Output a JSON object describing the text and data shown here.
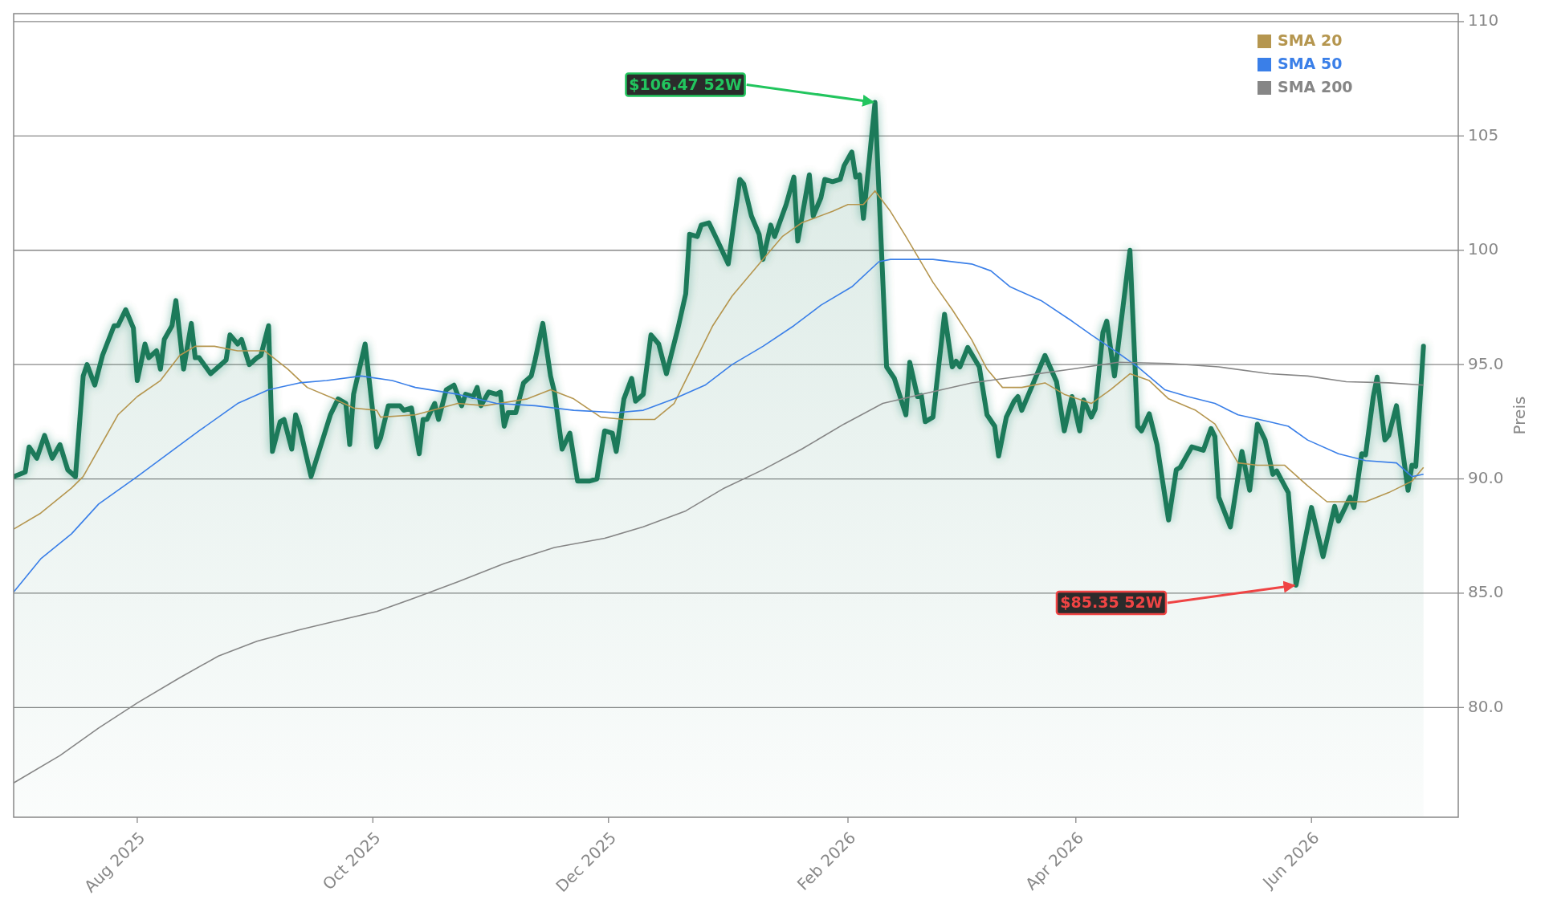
{
  "chart_data": {
    "type": "line",
    "ylabel": "Preis",
    "xlim": [
      "2025-06-30",
      "2026-07-09"
    ],
    "ylim": [
      75.2,
      110.35
    ],
    "xticks": [
      {
        "value": "2025-08-01",
        "label": "Aug 2025"
      },
      {
        "value": "2025-10-01",
        "label": "Oct 2025"
      },
      {
        "value": "2025-12-01",
        "label": "Dec 2025"
      },
      {
        "value": "2026-02-01",
        "label": "Feb 2026"
      },
      {
        "value": "2026-04-01",
        "label": "Apr 2026"
      },
      {
        "value": "2026-06-01",
        "label": "Jun 2026"
      }
    ],
    "yticks": [
      {
        "value": 80,
        "label": "80.0"
      },
      {
        "value": 85,
        "label": "85.0"
      },
      {
        "value": 90,
        "label": "90.0"
      },
      {
        "value": 95,
        "label": "95.0"
      },
      100,
      105,
      110
    ],
    "grid": "y",
    "legend": "top right",
    "annotations": [
      {
        "text": "$106.47 52W",
        "x": "2026-02-08",
        "y": 106.47
      },
      {
        "text": "$85.35 52W",
        "x": "2026-05-28",
        "y": 85.35
      }
    ],
    "series": [
      {
        "type": "area",
        "color": "#1b7a5a",
        "x": [
          "2025-06-30",
          "2025-07-03",
          "2025-07-04",
          "2025-07-06",
          "2025-07-08",
          "2025-07-10",
          "2025-07-12",
          "2025-07-14",
          "2025-07-16",
          "2025-07-18",
          "2025-07-19",
          "2025-07-21",
          "2025-07-23",
          "2025-07-26",
          "2025-07-27",
          "2025-07-29",
          "2025-07-31",
          "2025-08-01",
          "2025-08-03",
          "2025-08-04",
          "2025-08-06",
          "2025-08-07",
          "2025-08-08",
          "2025-08-10",
          "2025-08-11",
          "2025-08-13",
          "2025-08-15",
          "2025-08-16",
          "2025-08-17",
          "2025-08-20",
          "2025-08-22",
          "2025-08-24",
          "2025-08-25",
          "2025-08-27",
          "2025-08-28",
          "2025-08-30",
          "2025-09-01",
          "2025-09-02",
          "2025-09-04",
          "2025-09-05",
          "2025-09-07",
          "2025-09-08",
          "2025-09-10",
          "2025-09-11",
          "2025-09-12",
          "2025-09-15",
          "2025-09-20",
          "2025-09-22",
          "2025-09-24",
          "2025-09-25",
          "2025-09-26",
          "2025-09-29",
          "2025-10-02",
          "2025-10-03",
          "2025-10-05",
          "2025-10-08",
          "2025-10-09",
          "2025-10-11",
          "2025-10-13",
          "2025-10-14",
          "2025-10-15",
          "2025-10-17",
          "2025-10-18",
          "2025-10-20",
          "2025-10-22",
          "2025-10-24",
          "2025-10-25",
          "2025-10-27",
          "2025-10-28",
          "2025-10-29",
          "2025-10-31",
          "2025-11-02",
          "2025-11-03",
          "2025-11-04",
          "2025-11-05",
          "2025-11-07",
          "2025-11-09",
          "2025-11-11",
          "2025-11-12",
          "2025-11-14",
          "2025-11-16",
          "2025-11-17",
          "2025-11-19",
          "2025-11-21",
          "2025-11-23",
          "2025-11-26",
          "2025-11-28",
          "2025-11-30",
          "2025-12-02",
          "2025-12-03",
          "2025-12-05",
          "2025-12-07",
          "2025-12-08",
          "2025-12-10",
          "2025-12-12",
          "2025-12-14",
          "2025-12-16",
          "2025-12-19",
          "2025-12-21",
          "2025-12-22",
          "2025-12-24",
          "2025-12-25",
          "2025-12-27",
          "2025-12-29",
          "2026-01-01",
          "2026-01-04",
          "2026-01-05",
          "2026-01-07",
          "2026-01-09",
          "2026-01-10",
          "2026-01-12",
          "2026-01-13",
          "2026-01-16",
          "2026-01-18",
          "2026-01-19",
          "2026-01-22",
          "2026-01-23",
          "2026-01-25",
          "2026-01-26",
          "2026-01-28",
          "2026-01-30",
          "2026-01-31",
          "2026-02-02",
          "2026-02-03",
          "2026-02-04",
          "2026-02-05",
          "2026-02-08",
          "2026-02-11",
          "2026-02-13",
          "2026-02-16",
          "2026-02-17",
          "2026-02-19",
          "2026-02-20",
          "2026-02-21",
          "2026-02-23",
          "2026-02-26",
          "2026-02-28",
          "2026-03-01",
          "2026-03-02",
          "2026-03-04",
          "2026-03-07",
          "2026-03-09",
          "2026-03-11",
          "2026-03-12",
          "2026-03-14",
          "2026-03-16",
          "2026-03-17",
          "2026-03-18",
          "2026-03-24",
          "2026-03-27",
          "2026-03-29",
          "2026-03-31",
          "2026-04-02",
          "2026-04-03",
          "2026-04-05",
          "2026-04-06",
          "2026-04-08",
          "2026-04-09",
          "2026-04-11",
          "2026-04-15",
          "2026-04-17",
          "2026-04-18",
          "2026-04-20",
          "2026-04-22",
          "2026-04-25",
          "2026-04-27",
          "2026-04-28",
          "2026-05-01",
          "2026-05-04",
          "2026-05-06",
          "2026-05-07",
          "2026-05-08",
          "2026-05-11",
          "2026-05-13",
          "2026-05-14",
          "2026-05-16",
          "2026-05-18",
          "2026-05-20",
          "2026-05-22",
          "2026-05-23",
          "2026-05-26",
          "2026-05-28",
          "2026-06-01",
          "2026-06-04",
          "2026-06-07",
          "2026-06-08",
          "2026-06-11",
          "2026-06-12",
          "2026-06-14",
          "2026-06-15",
          "2026-06-17",
          "2026-06-18",
          "2026-06-20",
          "2026-06-21",
          "2026-06-23",
          "2026-06-26",
          "2026-06-27",
          "2026-06-28",
          "2026-06-30"
        ],
        "values": [
          90.1,
          90.3,
          91.4,
          90.9,
          91.9,
          90.9,
          91.5,
          90.4,
          90.1,
          94.5,
          95.0,
          94.1,
          95.4,
          96.7,
          96.7,
          97.4,
          96.6,
          94.3,
          95.9,
          95.3,
          95.6,
          94.8,
          96.1,
          96.7,
          97.8,
          94.8,
          96.8,
          95.3,
          95.3,
          94.6,
          94.9,
          95.2,
          96.3,
          95.9,
          96.1,
          95.0,
          95.3,
          95.4,
          96.7,
          91.2,
          92.5,
          92.6,
          91.3,
          92.8,
          92.3,
          90.1,
          92.8,
          93.5,
          93.3,
          91.5,
          93.7,
          95.9,
          91.4,
          91.8,
          93.2,
          93.2,
          93.0,
          93.1,
          91.1,
          92.6,
          92.6,
          93.3,
          92.6,
          93.9,
          94.1,
          93.2,
          93.7,
          93.6,
          94.0,
          93.2,
          93.8,
          93.7,
          93.8,
          92.3,
          92.9,
          92.9,
          94.2,
          94.5,
          95.2,
          96.8,
          94.5,
          93.8,
          91.3,
          92.0,
          89.9,
          89.9,
          90.0,
          92.1,
          92.0,
          91.2,
          93.5,
          94.4,
          93.4,
          93.7,
          96.3,
          95.9,
          94.6,
          96.6,
          98.1,
          100.7,
          100.6,
          101.1,
          101.2,
          100.5,
          99.4,
          103.1,
          102.9,
          101.5,
          100.7,
          99.6,
          101.1,
          100.6,
          102.0,
          103.2,
          100.4,
          103.3,
          101.5,
          102.3,
          103.1,
          103.0,
          103.1,
          103.7,
          104.3,
          103.2,
          103.3,
          101.4,
          106.47,
          94.9,
          94.4,
          92.8,
          95.1,
          93.6,
          93.65,
          92.5,
          92.7,
          97.2,
          94.9,
          95.15,
          94.9,
          95.75,
          94.9,
          92.8,
          92.3,
          91.0,
          92.7,
          93.4,
          93.6,
          93.0,
          95.4,
          94.25,
          92.1,
          93.6,
          92.1,
          93.45,
          92.7,
          93.05,
          96.4,
          96.9,
          94.5,
          100.0,
          92.3,
          92.1,
          92.85,
          91.5,
          88.2,
          90.4,
          90.5,
          91.4,
          91.25,
          92.2,
          91.85,
          89.2,
          87.9,
          90.1,
          91.2,
          89.5,
          92.4,
          91.7,
          90.2,
          90.35,
          89.4,
          85.35,
          88.75,
          86.6,
          88.8,
          88.15,
          89.2,
          88.75,
          91.1,
          91.05,
          93.6,
          94.45,
          91.7,
          91.9,
          93.2,
          89.5,
          90.6,
          90.55,
          95.8
        ]
      },
      {
        "name": "SMA 20",
        "color": "#b5964f",
        "x": [
          "2025-06-30",
          "2025-07-07",
          "2025-07-15",
          "2025-07-18",
          "2025-07-22",
          "2025-07-27",
          "2025-08-01",
          "2025-08-07",
          "2025-08-12",
          "2025-08-16",
          "2025-08-21",
          "2025-08-27",
          "2025-09-03",
          "2025-09-09",
          "2025-09-14",
          "2025-09-21",
          "2025-09-26",
          "2025-10-02",
          "2025-10-03",
          "2025-10-12",
          "2025-10-23",
          "2025-10-30",
          "2025-11-10",
          "2025-11-16",
          "2025-11-22",
          "2025-11-29",
          "2025-12-05",
          "2025-12-13",
          "2025-12-18",
          "2025-12-23",
          "2025-12-28",
          "2026-01-02",
          "2026-01-09",
          "2026-01-15",
          "2026-01-20",
          "2026-01-28",
          "2026-02-01",
          "2026-02-05",
          "2026-02-08",
          "2026-02-12",
          "2026-02-16",
          "2026-02-23",
          "2026-02-28",
          "2026-03-05",
          "2026-03-09",
          "2026-03-13",
          "2026-03-18",
          "2026-03-24",
          "2026-03-29",
          "2026-04-05",
          "2026-04-10",
          "2026-04-15",
          "2026-04-20",
          "2026-04-25",
          "2026-05-02",
          "2026-05-07",
          "2026-05-13",
          "2026-05-18",
          "2026-05-25",
          "2026-05-31",
          "2026-06-05",
          "2026-06-10",
          "2026-06-15",
          "2026-06-21",
          "2026-06-27",
          "2026-06-30"
        ],
        "values": [
          87.8,
          88.5,
          89.6,
          90.1,
          91.3,
          92.8,
          93.6,
          94.3,
          95.4,
          95.8,
          95.8,
          95.6,
          95.6,
          94.8,
          94.0,
          93.5,
          93.1,
          93.0,
          92.7,
          92.8,
          93.3,
          93.2,
          93.5,
          93.9,
          93.5,
          92.7,
          92.6,
          92.6,
          93.3,
          95.0,
          96.7,
          98.0,
          99.4,
          100.6,
          101.2,
          101.7,
          102.0,
          102.0,
          102.6,
          101.7,
          100.6,
          98.6,
          97.4,
          96.1,
          94.8,
          94.0,
          94.0,
          94.2,
          93.7,
          93.3,
          93.9,
          94.6,
          94.3,
          93.5,
          93.0,
          92.4,
          90.7,
          90.6,
          90.6,
          89.7,
          89.0,
          89.0,
          89.0,
          89.4,
          89.9,
          90.5
        ]
      },
      {
        "name": "SMA 50",
        "color": "#3a7fe8",
        "x": [
          "2025-06-30",
          "2025-07-07",
          "2025-07-15",
          "2025-07-22",
          "2025-08-01",
          "2025-08-09",
          "2025-08-17",
          "2025-08-27",
          "2025-09-04",
          "2025-09-12",
          "2025-09-19",
          "2025-09-28",
          "2025-10-06",
          "2025-10-12",
          "2025-10-23",
          "2025-11-02",
          "2025-11-12",
          "2025-11-22",
          "2025-12-03",
          "2025-12-10",
          "2025-12-18",
          "2025-12-26",
          "2026-01-02",
          "2026-01-10",
          "2026-01-18",
          "2026-01-25",
          "2026-02-02",
          "2026-02-09",
          "2026-02-12",
          "2026-02-23",
          "2026-03-05",
          "2026-03-10",
          "2026-03-15",
          "2026-03-23",
          "2026-03-31",
          "2026-04-05",
          "2026-04-12",
          "2026-04-17",
          "2026-04-24",
          "2026-04-30",
          "2026-05-07",
          "2026-05-13",
          "2026-05-21",
          "2026-05-26",
          "2026-05-31",
          "2026-06-08",
          "2026-06-15",
          "2026-06-23",
          "2026-06-27",
          "2026-06-30"
        ],
        "values": [
          85.05,
          86.5,
          87.6,
          88.9,
          90.1,
          91.1,
          92.1,
          93.3,
          93.9,
          94.2,
          94.3,
          94.5,
          94.3,
          94.0,
          93.7,
          93.3,
          93.2,
          93.0,
          92.9,
          93.0,
          93.5,
          94.1,
          95.0,
          95.8,
          96.7,
          97.6,
          98.4,
          99.5,
          99.6,
          99.6,
          99.4,
          99.1,
          98.4,
          97.8,
          96.9,
          96.3,
          95.5,
          94.9,
          93.9,
          93.6,
          93.3,
          92.8,
          92.5,
          92.3,
          91.7,
          91.1,
          90.8,
          90.7,
          90.1,
          90.2
        ]
      },
      {
        "name": "SMA 200",
        "color": "#868686",
        "x": [
          "2025-06-30",
          "2025-07-12",
          "2025-07-22",
          "2025-08-01",
          "2025-08-12",
          "2025-08-22",
          "2025-09-01",
          "2025-09-12",
          "2025-09-22",
          "2025-10-02",
          "2025-10-12",
          "2025-10-23",
          "2025-11-04",
          "2025-11-17",
          "2025-11-30",
          "2025-12-10",
          "2025-12-21",
          "2025-12-31",
          "2026-01-10",
          "2026-01-20",
          "2026-01-31",
          "2026-02-10",
          "2026-02-20",
          "2026-03-05",
          "2026-03-18",
          "2026-03-31",
          "2026-04-12",
          "2026-04-25",
          "2026-05-08",
          "2026-05-21",
          "2026-05-31",
          "2026-06-10",
          "2026-06-21",
          "2026-06-30"
        ],
        "values": [
          76.7,
          77.9,
          79.1,
          80.2,
          81.3,
          82.25,
          82.9,
          83.4,
          83.8,
          84.2,
          84.8,
          85.5,
          86.3,
          87.0,
          87.4,
          87.9,
          88.6,
          89.6,
          90.4,
          91.3,
          92.4,
          93.3,
          93.7,
          94.2,
          94.5,
          94.8,
          95.1,
          95.05,
          94.9,
          94.6,
          94.5,
          94.25,
          94.2,
          94.1
        ]
      }
    ]
  }
}
